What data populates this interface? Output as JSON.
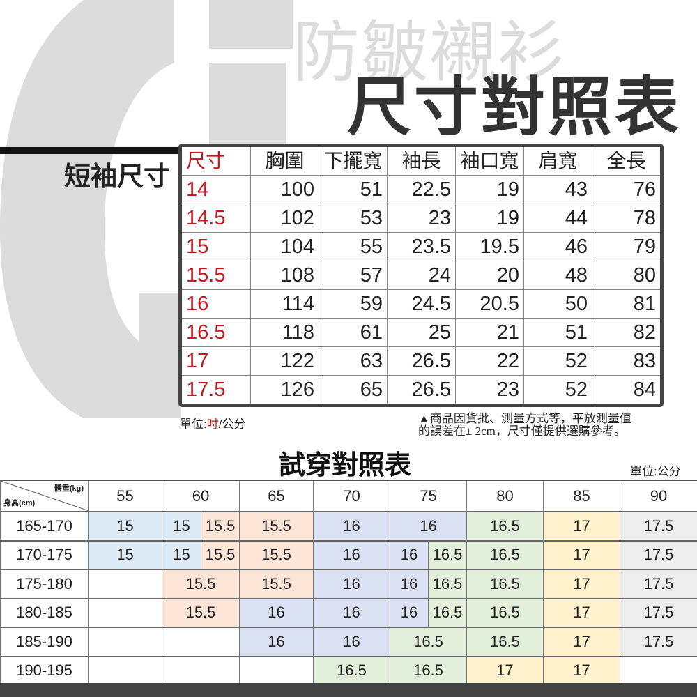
{
  "header": {
    "subtitle": "防皺襯衫",
    "title": "尺寸對照表",
    "logo_text": "GF"
  },
  "size_chart": {
    "label": "短袖尺寸",
    "columns": [
      "尺寸",
      "胸圍",
      "下擺寬",
      "袖長",
      "袖口寬",
      "肩寬",
      "全長"
    ],
    "rows": [
      [
        "14",
        "100",
        "51",
        "22.5",
        "19",
        "43",
        "76"
      ],
      [
        "14.5",
        "102",
        "53",
        "23",
        "19",
        "44",
        "78"
      ],
      [
        "15",
        "104",
        "55",
        "23.5",
        "19.5",
        "46",
        "79"
      ],
      [
        "15.5",
        "108",
        "57",
        "24",
        "20",
        "48",
        "80"
      ],
      [
        "16",
        "114",
        "59",
        "24.5",
        "20.5",
        "50",
        "81"
      ],
      [
        "16.5",
        "118",
        "61",
        "25",
        "21",
        "51",
        "82"
      ],
      [
        "17",
        "122",
        "63",
        "26.5",
        "22",
        "52",
        "83"
      ],
      [
        "17.5",
        "126",
        "65",
        "26.5",
        "23",
        "52",
        "84"
      ]
    ],
    "unit_prefix": "單位:",
    "unit_inch": "吋",
    "unit_suffix": "/公分",
    "note_line1": "▲商品因貨批、測量方式等，平放測量值",
    "note_line2": "的誤差在± 2cm，尺寸僅提供選購參考。",
    "accent_color": "#c8161d"
  },
  "fit_chart": {
    "title": "試穿對照表",
    "unit": "單位:公分",
    "corner_weight": "體重(kg)",
    "corner_height": "身高(cm)",
    "weights": [
      {
        "v": "55",
        "span": 1
      },
      {
        "v": "60",
        "span": 2
      },
      {
        "v": "65",
        "span": 1
      },
      {
        "v": "70",
        "span": 1
      },
      {
        "v": "75",
        "span": 2
      },
      {
        "v": "80",
        "span": 1
      },
      {
        "v": "85",
        "span": 1
      },
      {
        "v": "90",
        "span": 1
      }
    ],
    "colors": {
      "blue": "#ddebf7",
      "peach": "#fce4d6",
      "lavender": "#d9e1f2",
      "green": "#e2efda",
      "yellow": "#fff2cc",
      "gray": "#ededed",
      "none": "#ffffff"
    },
    "rows": [
      {
        "height": "165-170",
        "cells": [
          {
            "v": "15",
            "c": "blue",
            "span": 1
          },
          {
            "v": "15",
            "c": "blue",
            "span": 1
          },
          {
            "v": "15.5",
            "c": "peach",
            "span": 1
          },
          {
            "v": "15.5",
            "c": "peach",
            "span": 1
          },
          {
            "v": "16",
            "c": "lavender",
            "span": 1
          },
          {
            "v": "16",
            "c": "lavender",
            "span": 2
          },
          {
            "v": "16.5",
            "c": "green",
            "span": 1
          },
          {
            "v": "17",
            "c": "yellow",
            "span": 1
          },
          {
            "v": "17.5",
            "c": "gray",
            "span": 1
          }
        ]
      },
      {
        "height": "170-175",
        "cells": [
          {
            "v": "15",
            "c": "blue",
            "span": 1
          },
          {
            "v": "15",
            "c": "blue",
            "span": 1
          },
          {
            "v": "15.5",
            "c": "peach",
            "span": 1
          },
          {
            "v": "15.5",
            "c": "peach",
            "span": 1
          },
          {
            "v": "16",
            "c": "lavender",
            "span": 1
          },
          {
            "v": "16",
            "c": "lavender",
            "span": 1
          },
          {
            "v": "16.5",
            "c": "green",
            "span": 1
          },
          {
            "v": "16.5",
            "c": "green",
            "span": 1
          },
          {
            "v": "17",
            "c": "yellow",
            "span": 1
          },
          {
            "v": "17.5",
            "c": "gray",
            "span": 1
          }
        ]
      },
      {
        "height": "175-180",
        "cells": [
          {
            "v": "",
            "c": "none",
            "span": 1
          },
          {
            "v": "15.5",
            "c": "peach",
            "span": 2
          },
          {
            "v": "15.5",
            "c": "peach",
            "span": 1
          },
          {
            "v": "16",
            "c": "lavender",
            "span": 1
          },
          {
            "v": "16",
            "c": "lavender",
            "span": 1
          },
          {
            "v": "16.5",
            "c": "green",
            "span": 1
          },
          {
            "v": "16.5",
            "c": "green",
            "span": 1
          },
          {
            "v": "17",
            "c": "yellow",
            "span": 1
          },
          {
            "v": "17.5",
            "c": "gray",
            "span": 1
          }
        ]
      },
      {
        "height": "180-185",
        "cells": [
          {
            "v": "",
            "c": "none",
            "span": 1
          },
          {
            "v": "15.5",
            "c": "peach",
            "span": 2
          },
          {
            "v": "16",
            "c": "lavender",
            "span": 1
          },
          {
            "v": "16",
            "c": "lavender",
            "span": 1
          },
          {
            "v": "16",
            "c": "lavender",
            "span": 1
          },
          {
            "v": "16.5",
            "c": "green",
            "span": 1
          },
          {
            "v": "16.5",
            "c": "green",
            "span": 1
          },
          {
            "v": "17",
            "c": "yellow",
            "span": 1
          },
          {
            "v": "17.5",
            "c": "gray",
            "span": 1
          }
        ]
      },
      {
        "height": "185-190",
        "cells": [
          {
            "v": "",
            "c": "none",
            "span": 1
          },
          {
            "v": "",
            "c": "none",
            "span": 2
          },
          {
            "v": "16",
            "c": "lavender",
            "span": 1
          },
          {
            "v": "16",
            "c": "lavender",
            "span": 1
          },
          {
            "v": "16.5",
            "c": "green",
            "span": 2
          },
          {
            "v": "16.5",
            "c": "green",
            "span": 1
          },
          {
            "v": "17",
            "c": "yellow",
            "span": 1
          },
          {
            "v": "17.5",
            "c": "gray",
            "span": 1
          }
        ]
      },
      {
        "height": "190-195",
        "cells": [
          {
            "v": "",
            "c": "none",
            "span": 1
          },
          {
            "v": "",
            "c": "none",
            "span": 2
          },
          {
            "v": "",
            "c": "none",
            "span": 1
          },
          {
            "v": "16.5",
            "c": "green",
            "span": 1
          },
          {
            "v": "16.5",
            "c": "green",
            "span": 2
          },
          {
            "v": "17",
            "c": "yellow",
            "span": 1
          },
          {
            "v": "17",
            "c": "yellow",
            "span": 1
          },
          {
            "v": "",
            "c": "none",
            "span": 1
          }
        ]
      }
    ]
  }
}
